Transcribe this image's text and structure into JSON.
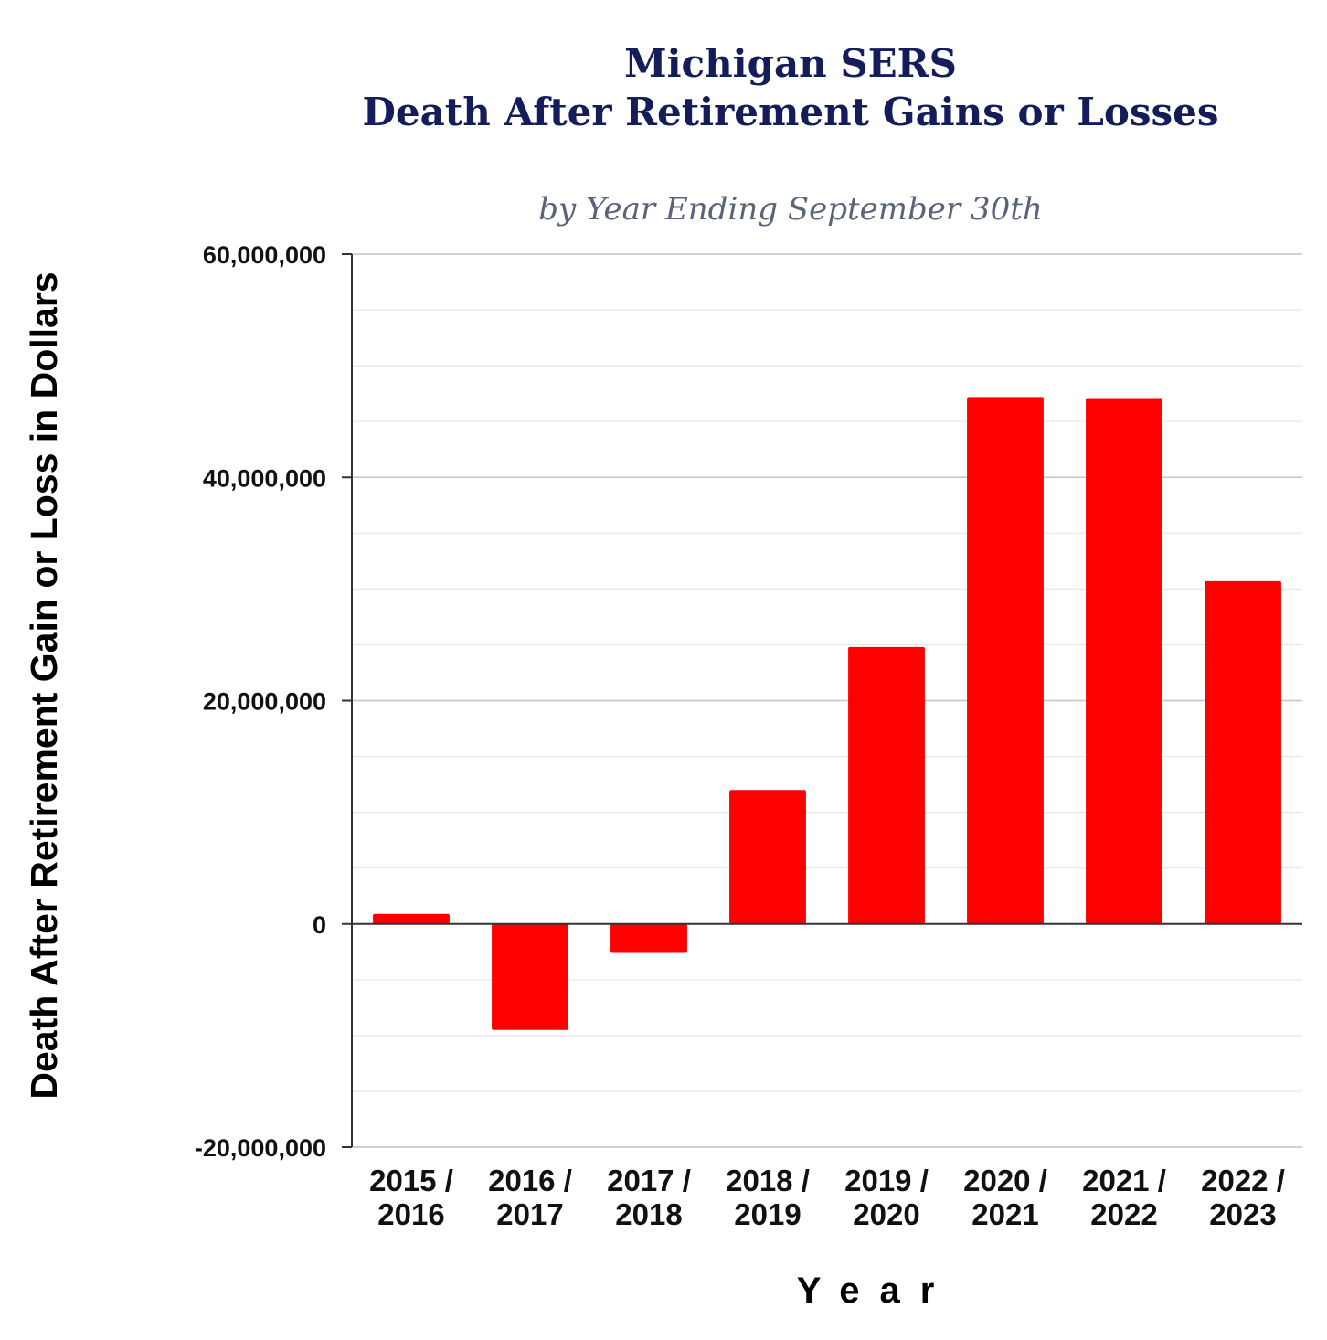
{
  "chart_data": {
    "type": "bar",
    "title": [
      "Michigan SERS",
      "Death After Retirement Gains or Losses"
    ],
    "subtitle": "by Year Ending September 30th",
    "xlabel": "Year",
    "ylabel": "Death After Retirement Gain or Loss in Dollars",
    "categories": [
      [
        "2015 /",
        "2016"
      ],
      [
        "2016 /",
        "2017"
      ],
      [
        "2017 /",
        "2018"
      ],
      [
        "2018 /",
        "2019"
      ],
      [
        "2019 /",
        "2020"
      ],
      [
        "2020 /",
        "2021"
      ],
      [
        "2021 /",
        "2022"
      ],
      [
        "2022 /",
        "2023"
      ]
    ],
    "series": [
      {
        "name": "Death After Retirement Gain or Loss",
        "values": [
          900000,
          -9500000,
          -2600000,
          12000000,
          24800000,
          47200000,
          47100000,
          30700000
        ]
      }
    ],
    "ylim": [
      -20000000,
      60000000
    ],
    "yticks": [
      {
        "value": 60000000,
        "label": "60,000,000"
      },
      {
        "value": 40000000,
        "label": "40,000,000"
      },
      {
        "value": 20000000,
        "label": "20,000,000"
      },
      {
        "value": 0,
        "label": "0"
      },
      {
        "value": -20000000,
        "label": "-20,000,000"
      }
    ],
    "minor_grid_step": 5000000,
    "grid": true,
    "legend": "none",
    "colors": {
      "bar": "#ff0000",
      "title": "#141c5a",
      "subtitle": "#5a6478",
      "grid_major": "#c4c4c4",
      "grid_minor": "#e6e6e6",
      "axis": "#333333"
    }
  }
}
